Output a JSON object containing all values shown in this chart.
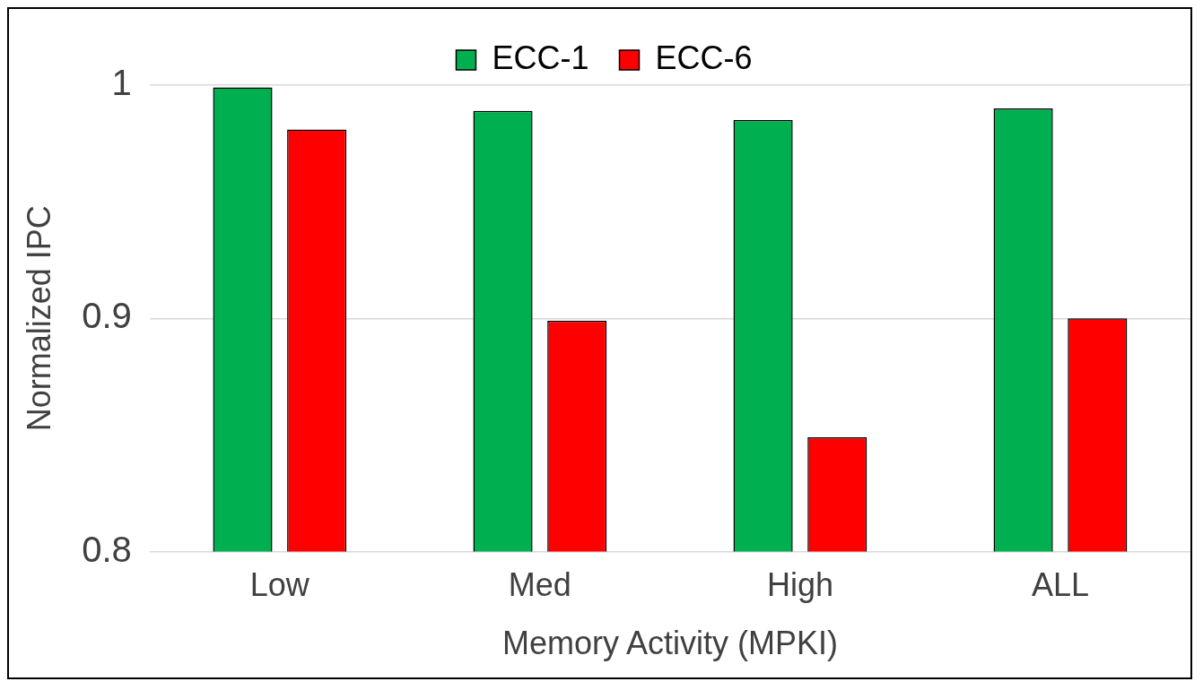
{
  "chart_data": {
    "type": "bar",
    "xlabel": "Memory Activity (MPKI)",
    "ylabel": "Normalized IPC",
    "categories": [
      "Low",
      "Med",
      "High",
      "ALL"
    ],
    "series": [
      {
        "name": "ECC-1",
        "color": "#00b050",
        "values": [
          0.999,
          0.989,
          0.985,
          0.99
        ]
      },
      {
        "name": "ECC-6",
        "color": "#ff0000",
        "values": [
          0.981,
          0.899,
          0.849,
          0.9
        ]
      }
    ],
    "ylim": [
      0.8,
      1
    ],
    "yticks": [
      {
        "value": 0.8,
        "label": "0.8"
      },
      {
        "value": 0.9,
        "label": "0.9"
      },
      {
        "value": 1,
        "label": "1"
      }
    ],
    "grid": "y",
    "legend": "top"
  }
}
